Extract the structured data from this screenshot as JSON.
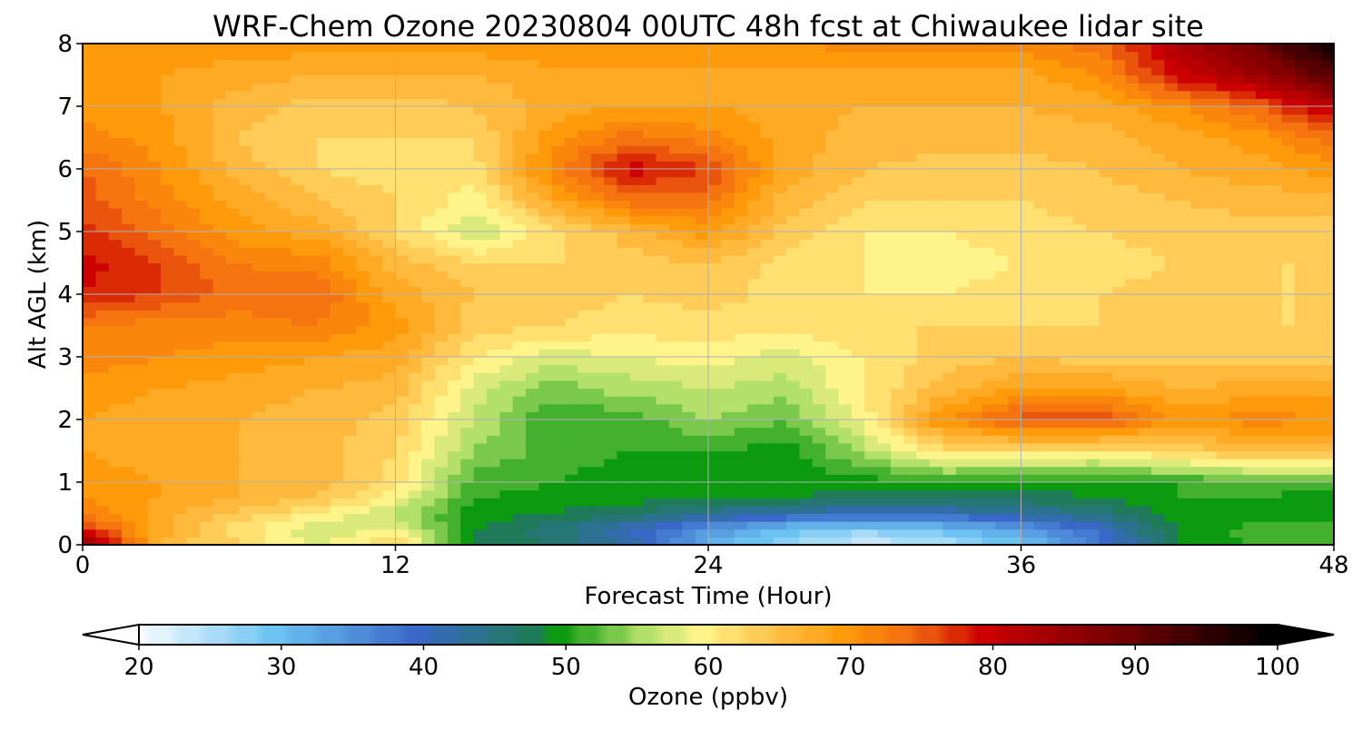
{
  "chart_data": {
    "type": "heatmap",
    "title": "WRF-Chem Ozone  20230804 00UTC 48h fcst at Chiwaukee lidar site",
    "xlabel": "Forecast Time (Hour)",
    "ylabel": "Alt AGL (km)",
    "xlim": [
      0,
      48
    ],
    "ylim": [
      0,
      8
    ],
    "x_ticks": [
      0,
      12,
      24,
      36,
      48
    ],
    "y_ticks": [
      0,
      1,
      2,
      3,
      4,
      5,
      6,
      7,
      8
    ],
    "grid": true,
    "colorbar": {
      "label": "Ozone  (ppbv)",
      "min": 20,
      "max": 100,
      "ticks": [
        20,
        30,
        40,
        50,
        60,
        70,
        80,
        90,
        100
      ],
      "extend": "both",
      "orientation": "horizontal",
      "colors": {
        "20": "#ffffff",
        "30": "#6cc3f2",
        "40": "#3a68c8",
        "48": "#1f7a5a",
        "50": "#0b9a10",
        "56": "#b2e06a",
        "60": "#fff48a",
        "65": "#ffc24a",
        "70": "#ff9a0a",
        "75": "#f26a10",
        "80": "#cc0000",
        "90": "#6e0000",
        "100": "#000000"
      }
    },
    "x": [
      0,
      3,
      6,
      9,
      12,
      15,
      18,
      21,
      24,
      27,
      30,
      33,
      36,
      39,
      42,
      45,
      48
    ],
    "y": [
      0,
      0.25,
      0.5,
      0.75,
      1,
      1.5,
      2,
      2.5,
      3,
      3.5,
      4,
      4.5,
      5,
      5.5,
      6,
      6.5,
      7,
      7.5,
      8
    ],
    "z": [
      [
        88,
        66,
        63,
        58,
        64,
        48,
        47,
        43,
        32,
        27,
        23,
        25,
        30,
        38,
        49,
        51,
        52
      ],
      [
        78,
        68,
        62,
        57,
        60,
        49,
        46,
        41,
        35,
        30,
        28,
        30,
        34,
        40,
        49,
        52,
        53
      ],
      [
        73,
        68,
        64,
        61,
        56,
        50,
        49,
        47,
        44,
        42,
        40,
        41,
        43,
        45,
        50,
        50,
        50
      ],
      [
        71,
        69,
        67,
        65,
        60,
        51,
        50,
        50,
        49,
        49,
        48,
        48,
        48,
        49,
        51,
        51,
        50
      ],
      [
        70,
        69,
        67,
        66,
        62,
        52,
        51,
        50,
        50,
        50,
        50,
        51,
        50,
        50,
        51,
        52,
        52
      ],
      [
        69,
        68,
        67,
        66,
        63,
        55,
        52,
        51,
        51,
        50,
        56,
        62,
        62,
        61,
        63,
        66,
        66
      ],
      [
        69,
        68,
        67,
        66,
        64,
        57,
        51,
        52,
        55,
        53,
        60,
        71,
        76,
        77,
        70,
        72,
        71
      ],
      [
        70,
        69,
        68,
        67,
        66,
        58,
        54,
        56,
        57,
        56,
        61,
        66,
        69,
        69,
        67,
        68,
        68
      ],
      [
        72,
        71,
        70,
        69,
        68,
        61,
        58,
        59,
        60,
        58,
        61,
        64,
        65,
        64,
        64,
        64,
        64
      ],
      [
        73,
        72,
        72,
        73,
        70,
        64,
        63,
        62,
        62,
        62,
        63,
        63,
        63,
        63,
        63,
        63,
        63
      ],
      [
        79,
        77,
        74,
        75,
        68,
        65,
        64,
        63,
        64,
        62,
        61,
        61,
        62,
        63,
        64,
        63,
        63
      ],
      [
        80,
        77,
        73,
        72,
        66,
        63,
        63,
        64,
        65,
        62,
        61,
        60,
        61,
        62,
        63,
        63,
        63
      ],
      [
        78,
        74,
        70,
        68,
        63,
        57,
        62,
        66,
        70,
        64,
        61,
        61,
        62,
        63,
        64,
        64,
        64
      ],
      [
        76,
        72,
        68,
        65,
        63,
        60,
        68,
        74,
        74,
        66,
        63,
        63,
        63,
        64,
        65,
        66,
        66
      ],
      [
        75,
        71,
        66,
        63,
        62,
        62,
        72,
        80,
        77,
        68,
        65,
        64,
        64,
        65,
        67,
        68,
        70
      ],
      [
        72,
        70,
        65,
        63,
        63,
        63,
        70,
        74,
        72,
        68,
        66,
        66,
        66,
        66,
        68,
        70,
        74
      ],
      [
        70,
        69,
        66,
        64,
        64,
        65,
        68,
        69,
        69,
        68,
        67,
        67,
        67,
        68,
        71,
        75,
        82
      ],
      [
        70,
        69,
        68,
        67,
        67,
        67,
        68,
        68,
        68,
        68,
        68,
        68,
        68,
        71,
        80,
        85,
        92
      ],
      [
        71,
        70,
        70,
        70,
        70,
        70,
        71,
        71,
        71,
        71,
        72,
        72,
        72,
        74,
        83,
        90,
        100
      ]
    ]
  }
}
